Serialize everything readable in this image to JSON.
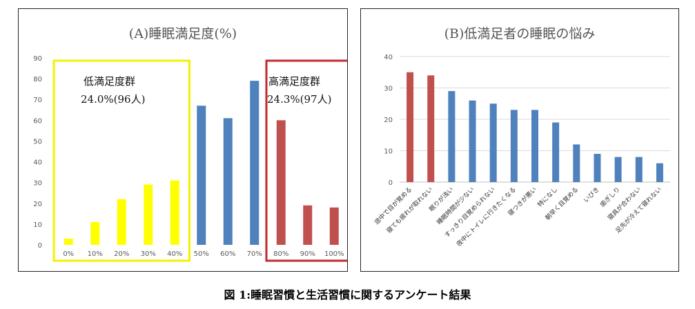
{
  "caption": "図 1:睡眠習慣と生活習慣に関するアンケート結果",
  "colors": {
    "yellow": "#FFFF00",
    "blue": "#4F81BD",
    "red": "#C0504D",
    "grid": "#D9D9D9",
    "yellow_box": "#F5F000",
    "red_box": "#C0292E"
  },
  "chart_data": [
    {
      "type": "bar",
      "title": "(A)睡眠満足度(%)",
      "categories": [
        "0%",
        "10%",
        "20%",
        "30%",
        "40%",
        "50%",
        "60%",
        "70%",
        "80%",
        "90%",
        "100%"
      ],
      "values": [
        3,
        11,
        22,
        29,
        31,
        67,
        61,
        79,
        60,
        19,
        18
      ],
      "bar_groups": [
        "low",
        "low",
        "low",
        "low",
        "low",
        "mid",
        "mid",
        "mid",
        "high",
        "high",
        "high"
      ],
      "ylim": [
        0,
        90
      ],
      "yticks": [
        0,
        10,
        20,
        30,
        40,
        50,
        60,
        70,
        80,
        90
      ],
      "grid": false,
      "groups": [
        {
          "key": "low",
          "label": "低満足度群",
          "sub": "24.0%(96人)",
          "color": "yellow",
          "box_color": "yellow_box"
        },
        {
          "key": "high",
          "label": "高満足度群",
          "sub": "24.3%(97人)",
          "color": "red",
          "box_color": "red_box"
        }
      ]
    },
    {
      "type": "bar",
      "title": "(B)低満足者の睡眠の悩み",
      "categories": [
        "途中で目が覚める",
        "寝ても疲れが取れない",
        "眠りが浅い",
        "睡眠時間が少ない",
        "すっきり目覚められない",
        "夜中にトイレに行きたくなる",
        "寝つきが悪い",
        "特になし",
        "朝早く目覚める",
        "いびき",
        "歯ぎしり",
        "寝具が合わない",
        "足先が冷えて寝れない"
      ],
      "values": [
        35,
        34,
        29,
        26,
        25,
        23,
        23,
        19,
        12,
        9,
        8,
        8,
        6
      ],
      "colors": [
        "red",
        "red",
        "blue",
        "blue",
        "blue",
        "blue",
        "blue",
        "blue",
        "blue",
        "blue",
        "blue",
        "blue",
        "blue"
      ],
      "ylim": [
        0,
        40
      ],
      "yticks": [
        0,
        10,
        20,
        30,
        40
      ],
      "grid": true
    }
  ]
}
